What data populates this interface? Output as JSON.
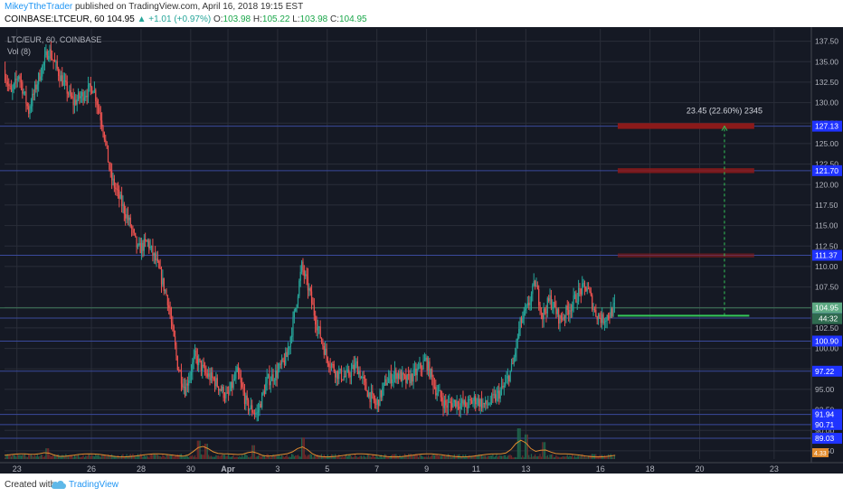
{
  "header": {
    "author": "MikeyTtheTrader",
    "published_text": " published on TradingView.com, April 16, 2018 19:15 EST",
    "symbol": "COINBASE:LTCEUR, 60",
    "last_price": "104.95",
    "change": "▲ +1.01 (+0.97%)",
    "o_label": "O:",
    "o_value": "103.98",
    "h_label": "H:",
    "h_value": "105.22",
    "l_label": "L:",
    "l_value": "103.98",
    "c_label": "C:",
    "c_value": "104.95"
  },
  "legend": {
    "series_title": "LTC/EUR, 60, COINBASE",
    "volume_title": "Vol (8)"
  },
  "footer": {
    "created_with": "Created with",
    "brand": "TradingView"
  },
  "colors": {
    "background": "#151924",
    "bull": "#26a69a",
    "bear": "#ef5350",
    "grid": "#2a2e39",
    "level_line": "#3a4a9c",
    "price_label_bg": "#1f33ff",
    "target_zone": "#8b1a1a",
    "projection": "#34c759"
  },
  "chart_data": {
    "type": "candlestick",
    "title": "LTC/EUR, 60, COINBASE",
    "y_axis": {
      "range": [
        86.5,
        139.0
      ],
      "ticks": [
        87.5,
        90.0,
        92.5,
        95.0,
        97.5,
        100.0,
        102.5,
        105.0,
        107.5,
        110.0,
        112.5,
        115.0,
        117.5,
        120.0,
        122.5,
        125.0,
        127.5,
        130.0,
        132.5,
        135.0,
        137.5
      ],
      "tick_labels": [
        "87.50",
        "90.00",
        "92.50",
        "95.00",
        "97.50",
        "100.00",
        "102.50",
        "105.00",
        "107.50",
        "110.00",
        "112.50",
        "115.00",
        "117.50",
        "120.00",
        "122.50",
        "125.00",
        "127.50",
        "130.00",
        "132.50",
        "135.00",
        "137.50"
      ]
    },
    "x_axis": {
      "ticks": [
        {
          "label": "23",
          "t": 0.5
        },
        {
          "label": "26",
          "t": 3.5
        },
        {
          "label": "28",
          "t": 5.5
        },
        {
          "label": "30",
          "t": 7.5
        },
        {
          "label": "Apr",
          "t": 9.0
        },
        {
          "label": "3",
          "t": 11.0
        },
        {
          "label": "5",
          "t": 13.0
        },
        {
          "label": "7",
          "t": 15.0
        },
        {
          "label": "9",
          "t": 17.0
        },
        {
          "label": "11",
          "t": 19.0
        },
        {
          "label": "13",
          "t": 21.0
        },
        {
          "label": "16",
          "t": 24.0
        },
        {
          "label": "18",
          "t": 26.0
        },
        {
          "label": "20",
          "t": 28.0
        },
        {
          "label": "23",
          "t": 31.0
        }
      ],
      "t_range": [
        0,
        32.5
      ]
    },
    "price_path": [
      [
        0.0,
        134
      ],
      [
        0.3,
        131
      ],
      [
        0.6,
        133.5
      ],
      [
        1.0,
        129
      ],
      [
        1.4,
        133
      ],
      [
        1.8,
        136.5
      ],
      [
        2.3,
        133
      ],
      [
        2.8,
        130
      ],
      [
        3.2,
        131
      ],
      [
        3.6,
        132
      ],
      [
        4.0,
        127
      ],
      [
        4.3,
        121
      ],
      [
        4.7,
        118
      ],
      [
        5.1,
        115
      ],
      [
        5.4,
        112
      ],
      [
        5.8,
        113
      ],
      [
        6.2,
        110
      ],
      [
        6.6,
        106
      ],
      [
        7.0,
        98
      ],
      [
        7.3,
        95
      ],
      [
        7.7,
        99
      ],
      [
        8.1,
        97
      ],
      [
        8.5,
        96
      ],
      [
        9.0,
        94
      ],
      [
        9.4,
        97
      ],
      [
        9.8,
        93
      ],
      [
        10.2,
        92
      ],
      [
        10.6,
        96
      ],
      [
        11.0,
        97
      ],
      [
        11.4,
        99
      ],
      [
        11.7,
        104
      ],
      [
        12.0,
        110
      ],
      [
        12.3,
        107
      ],
      [
        12.6,
        103
      ],
      [
        13.0,
        99
      ],
      [
        13.4,
        97
      ],
      [
        13.8,
        96.5
      ],
      [
        14.2,
        98
      ],
      [
        14.6,
        95
      ],
      [
        15.0,
        93
      ],
      [
        15.4,
        96
      ],
      [
        15.8,
        97
      ],
      [
        16.2,
        96
      ],
      [
        16.6,
        97
      ],
      [
        17.0,
        98.5
      ],
      [
        17.4,
        95
      ],
      [
        17.8,
        93
      ],
      [
        18.2,
        93.5
      ],
      [
        18.6,
        93
      ],
      [
        19.0,
        93.8
      ],
      [
        19.4,
        93
      ],
      [
        19.8,
        94
      ],
      [
        20.2,
        95.5
      ],
      [
        20.5,
        98
      ],
      [
        20.8,
        103
      ],
      [
        21.1,
        105
      ],
      [
        21.4,
        108
      ],
      [
        21.7,
        104
      ],
      [
        22.0,
        106
      ],
      [
        22.4,
        103.5
      ],
      [
        22.8,
        105
      ],
      [
        23.2,
        107
      ],
      [
        23.5,
        107.5
      ],
      [
        23.8,
        104.5
      ],
      [
        24.1,
        103.5
      ],
      [
        24.4,
        104.2
      ],
      [
        24.6,
        104.95
      ]
    ],
    "volume": {
      "spikes": [
        {
          "t": 1.7,
          "v": 0.35
        },
        {
          "t": 7.8,
          "v": 0.6
        },
        {
          "t": 8.1,
          "v": 0.5
        },
        {
          "t": 10.0,
          "v": 0.45
        },
        {
          "t": 12.0,
          "v": 0.7
        },
        {
          "t": 20.7,
          "v": 1.0
        },
        {
          "t": 21.0,
          "v": 0.8
        },
        {
          "t": 21.7,
          "v": 0.55
        }
      ]
    },
    "horizontal_levels": [
      {
        "price": 127.13,
        "label": "127.13"
      },
      {
        "price": 121.7,
        "label": "121.70"
      },
      {
        "price": 111.37,
        "label": "111.37"
      },
      {
        "price": 103.71,
        "label": "103.71"
      },
      {
        "price": 100.9,
        "label": "100.90"
      },
      {
        "price": 97.22,
        "label": "97.22"
      },
      {
        "price": 91.94,
        "label": "91.94"
      },
      {
        "price": 90.71,
        "label": "90.71"
      },
      {
        "price": 89.03,
        "label": "89.03"
      }
    ],
    "current_price": {
      "price": 104.95,
      "label": "104.95"
    },
    "countdown_label": "44:32",
    "volume_label": "4.33",
    "target_zones": [
      {
        "price_top": 127.5,
        "price_bottom": 126.8,
        "opacity": 1.0
      },
      {
        "price_top": 122.0,
        "price_bottom": 121.4,
        "opacity": 0.85
      },
      {
        "price_top": 111.6,
        "price_bottom": 111.1,
        "opacity": 0.6
      }
    ],
    "projection": {
      "text": "23.45 (22.60%) 2345",
      "t_start": 24.7,
      "t_end": 30.0,
      "t_vertical": 29.0,
      "price_from": 104.0,
      "price_to": 127.13
    },
    "grid": true
  }
}
